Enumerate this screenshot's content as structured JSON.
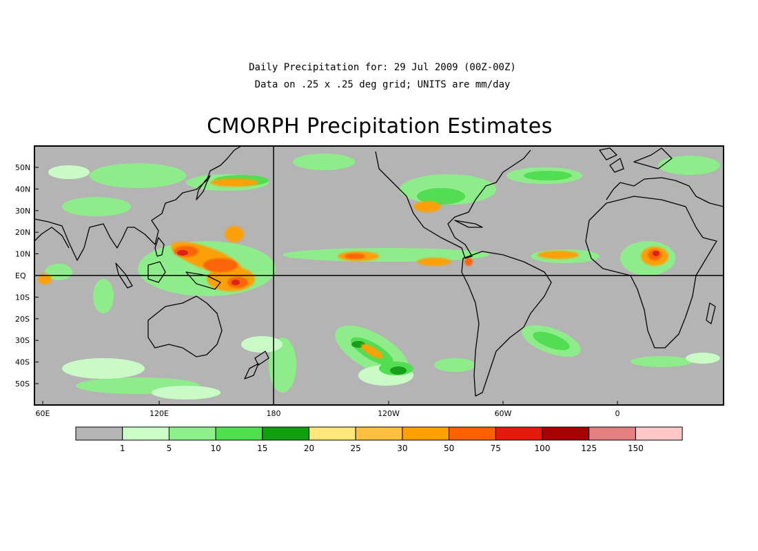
{
  "header": {
    "subtitle_line1": "Daily Precipitation for: 29 Jul 2009 (00Z-00Z)",
    "subtitle_line2": "Data on .25 x .25 deg grid; UNITS are mm/day",
    "title": "CMORPH Precipitation Estimates"
  },
  "map": {
    "background_color": "#b4b4b4",
    "coastline_color": "#000000",
    "lon_labels": [
      "60E",
      "120E",
      "180",
      "120W",
      "60W",
      "0"
    ],
    "lat_labels": [
      "50N",
      "40N",
      "30N",
      "20N",
      "10N",
      "EQ",
      "10S",
      "20S",
      "30S",
      "40S",
      "50S"
    ],
    "reference_lines": [
      "EQ",
      "180"
    ]
  },
  "legend": {
    "colors": [
      "#b4b4b4",
      "#ccffc8",
      "#8ef08a",
      "#4fe04f",
      "#0fa00f",
      "#ffe878",
      "#ffc040",
      "#ffa000",
      "#ff6000",
      "#e11a0e",
      "#a50303",
      "#e48080",
      "#ffc8c8"
    ],
    "labels": [
      "1",
      "5",
      "10",
      "15",
      "20",
      "25",
      "30",
      "50",
      "75",
      "100",
      "125",
      "150"
    ]
  }
}
